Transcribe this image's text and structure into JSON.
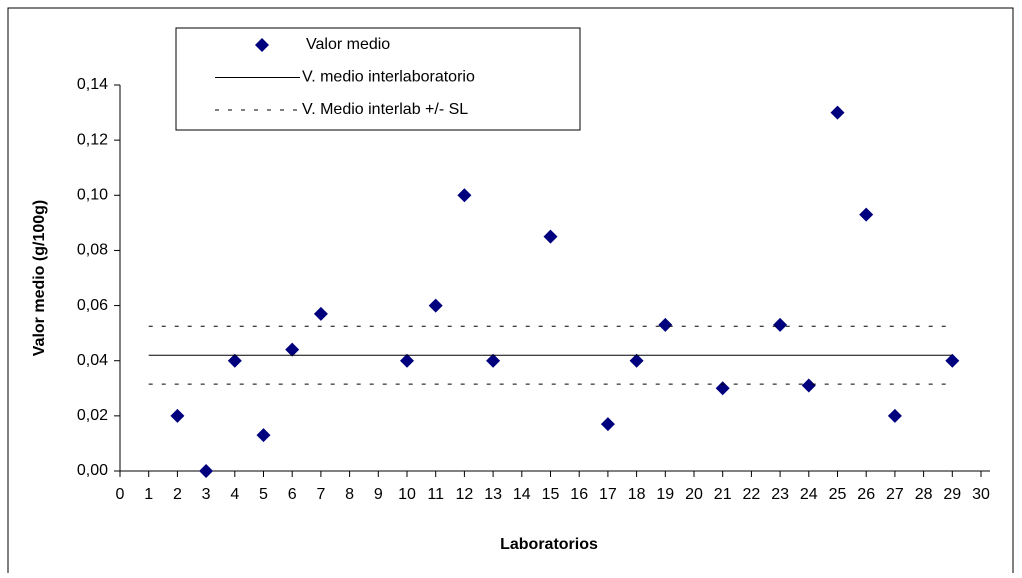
{
  "chart_data": {
    "type": "scatter",
    "x_label": "Laboratorios",
    "y_label": "Valor medio (g/100g)",
    "xlim": [
      0,
      30
    ],
    "xticks": [
      0,
      1,
      2,
      3,
      4,
      5,
      6,
      7,
      8,
      9,
      10,
      11,
      12,
      13,
      14,
      15,
      16,
      17,
      18,
      19,
      20,
      21,
      22,
      23,
      24,
      25,
      26,
      27,
      28,
      29,
      30
    ],
    "ylim": [
      0,
      0.14
    ],
    "yticks": [
      {
        "value": 0,
        "label": "0,00"
      },
      {
        "value": 0.02,
        "label": "0,02"
      },
      {
        "value": 0.04,
        "label": "0,04"
      },
      {
        "value": 0.06,
        "label": "0,06"
      },
      {
        "value": 0.08,
        "label": "0,08"
      },
      {
        "value": 0.1,
        "label": "0,10"
      },
      {
        "value": 0.12,
        "label": "0,12"
      },
      {
        "value": 0.14,
        "label": "0,14"
      }
    ],
    "grid": false,
    "series": [
      {
        "name": "Valor medio",
        "color": "#00007f",
        "marker": "diamond",
        "x": [
          2,
          3,
          4,
          5,
          6,
          7,
          10,
          11,
          12,
          13,
          15,
          17,
          18,
          19,
          21,
          23,
          24,
          25,
          26,
          27,
          29
        ],
        "values": [
          0.02,
          0,
          0.04,
          0.013,
          0.044,
          0.057,
          0.04,
          0.06,
          0.1,
          0.04,
          0.085,
          0.017,
          0.04,
          0.053,
          0.03,
          0.053,
          0.031,
          0.13,
          0.093,
          0.02,
          0.04
        ]
      },
      {
        "name": "V. medio interlaboratorio",
        "color": "#000000",
        "line": "solid",
        "x": [
          1,
          29
        ],
        "values": [
          0.042,
          0.042
        ]
      },
      {
        "name": "V. Medio interlab +/- SL",
        "color": "#000000",
        "line": "dashed",
        "x": [
          1,
          29,
          null,
          1,
          29
        ],
        "values": [
          0.0525,
          0.0525,
          null,
          0.0315,
          0.0315
        ]
      }
    ]
  }
}
